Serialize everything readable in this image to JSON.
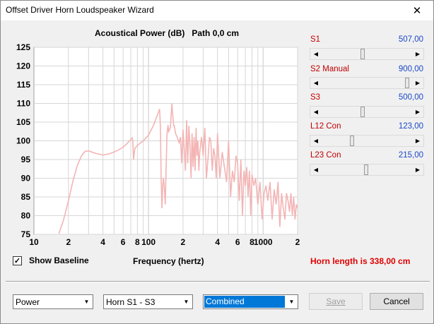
{
  "window": {
    "title": "Offset Driver Horn Loudspeaker Wizard",
    "close_glyph": "✕"
  },
  "chart_data": {
    "type": "line",
    "title": "Acoustical Power (dB)   Path 0,0 cm",
    "xlabel": "Frequency (hertz)",
    "ylabel": "",
    "x_scale": "log",
    "xlim": [
      10,
      2000
    ],
    "ylim": [
      75,
      125
    ],
    "x_ticks": [
      10,
      20,
      40,
      60,
      80,
      100,
      200,
      400,
      600,
      800,
      1000,
      2000
    ],
    "x_tick_labels": [
      "10",
      "2",
      "4",
      "6",
      "8",
      "100",
      "2",
      "4",
      "6",
      "8",
      "1000",
      "2"
    ],
    "y_ticks": [
      75,
      80,
      85,
      90,
      95,
      100,
      105,
      110,
      115,
      120,
      125
    ],
    "y_tick_labels": [
      "75",
      "80",
      "85",
      "90",
      "95",
      "100",
      "105",
      "110",
      "115",
      "120",
      "125"
    ],
    "grid": true,
    "series": [
      {
        "color": "#f4b4b4",
        "x": [
          16.5,
          18,
          20,
          22,
          24,
          26,
          28,
          30,
          35,
          40,
          45,
          50,
          55,
          60,
          65,
          70,
          72,
          73,
          74,
          76,
          80,
          90,
          100,
          110,
          120,
          125,
          127,
          129,
          131,
          133,
          135,
          137,
          140,
          142,
          145,
          148,
          150,
          155,
          160,
          163,
          166,
          168,
          170,
          172,
          175,
          178,
          180,
          185,
          190,
          195,
          200,
          205,
          210,
          215,
          220,
          225,
          230,
          235,
          240,
          245,
          250,
          255,
          260,
          265,
          270,
          275,
          280,
          290,
          300,
          310,
          320,
          330,
          340,
          350,
          360,
          370,
          380,
          390,
          400,
          420,
          440,
          460,
          480,
          500,
          520,
          540,
          560,
          580,
          600,
          620,
          640,
          660,
          680,
          700,
          720,
          740,
          760,
          780,
          800,
          830,
          860,
          900,
          940,
          980,
          1020,
          1060,
          1100,
          1150,
          1200,
          1250,
          1300,
          1350,
          1400,
          1450,
          1500,
          1550,
          1600,
          1650,
          1700,
          1750,
          1800,
          1850,
          1900,
          1950,
          2000
        ],
        "y": [
          75.2,
          78.5,
          84,
          89.5,
          93.5,
          96,
          97.2,
          97.3,
          96.6,
          96.2,
          96.5,
          97,
          97.6,
          98.3,
          99.3,
          100.3,
          100.8,
          100,
          95,
          98,
          98.8,
          100,
          101.5,
          104,
          107,
          108.5,
          104,
          90,
          82,
          88,
          90,
          88,
          83,
          91,
          102,
          104.2,
          102.5,
          103.5,
          110,
          106.5,
          104,
          104,
          103,
          102,
          101.5,
          101,
          100.5,
          99.5,
          101,
          94,
          103,
          98,
          92,
          105.5,
          94,
          104,
          99,
          90,
          102,
          93,
          101,
          92,
          103.5,
          96,
          100,
          92,
          97,
          101,
          96,
          103.5,
          90,
          95,
          101,
          100,
          92,
          98,
          96,
          90,
          102,
          90,
          97,
          93,
          89,
          100,
          85,
          92,
          89,
          96,
          94,
          84,
          95,
          80,
          92,
          88,
          93,
          85,
          92,
          80,
          91,
          88,
          90,
          83,
          89,
          79,
          86,
          88,
          84,
          89,
          79,
          87,
          83,
          89,
          77,
          86,
          82,
          79,
          86,
          84,
          81,
          86,
          80,
          85,
          79,
          83,
          82
        ]
      }
    ]
  },
  "sliders": [
    {
      "label": "S1",
      "value": "507,00",
      "position": 0.45
    },
    {
      "label": "S2  Manual",
      "value": "900,00",
      "position": 0.97
    },
    {
      "label": "S3",
      "value": "500,00",
      "position": 0.45
    },
    {
      "label": "L12  Con",
      "value": "123,00",
      "position": 0.33
    },
    {
      "label": "L23  Con",
      "value": "215,00",
      "position": 0.49
    }
  ],
  "show_baseline": {
    "label": "Show Baseline",
    "checked": true,
    "check_glyph": "✓"
  },
  "horn_length": "Horn length is 338,00 cm",
  "controls": {
    "combo1": "Power",
    "combo2": "Horn S1 - S3",
    "combo3": "Combined",
    "save_label": "Save",
    "cancel_label": "Cancel"
  }
}
